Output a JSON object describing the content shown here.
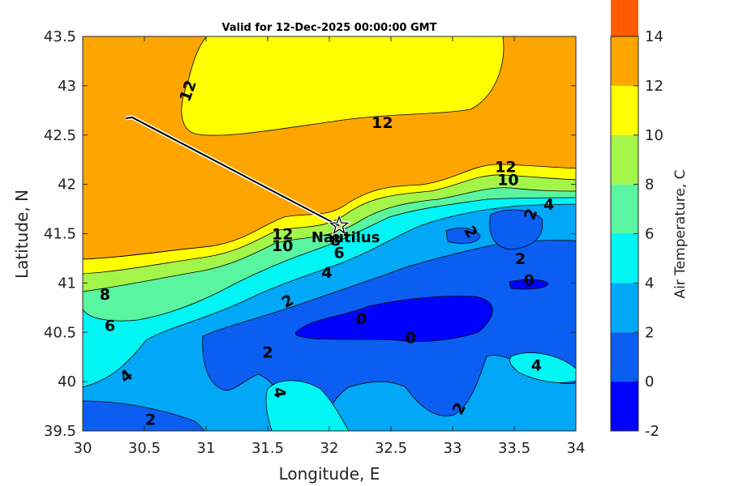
{
  "title": "Valid for 12-Dec-2025 00:00:00 GMT",
  "x_axis": {
    "label": "Longitude, E",
    "ticks": [
      "30",
      "30.5",
      "31",
      "31.5",
      "32",
      "32.5",
      "33",
      "33.5",
      "34"
    ]
  },
  "y_axis": {
    "label": "Latitude, N",
    "ticks": [
      "39.5",
      "40",
      "40.5",
      "41",
      "41.5",
      "42",
      "42.5",
      "43",
      "43.5"
    ]
  },
  "colorbar": {
    "label": "Air Temperature, C",
    "ticks": [
      "-2",
      "0",
      "2",
      "4",
      "6",
      "8",
      "10",
      "12",
      "14"
    ],
    "colors": [
      "#0000ff",
      "#0a5ef2",
      "#00a8f7",
      "#00f5f5",
      "#59f5a0",
      "#a4f54a",
      "#ffff00",
      "#ffa500",
      "#ff5a00"
    ]
  },
  "ship": {
    "name": "Nautilus",
    "position": {
      "lon": 32.08,
      "lat": 41.58
    },
    "track": [
      {
        "lon": 30.35,
        "lat": 42.67
      },
      {
        "lon": 30.4,
        "lat": 42.68
      },
      {
        "lon": 32.08,
        "lat": 41.58
      }
    ]
  },
  "contour_labels": [
    {
      "text": "12",
      "lon": 30.85,
      "lat": 42.95,
      "rot": -70
    },
    {
      "text": "12",
      "lon": 32.43,
      "lat": 42.63,
      "rot": 0
    },
    {
      "text": "12",
      "lon": 33.43,
      "lat": 42.18,
      "rot": 0
    },
    {
      "text": "10",
      "lon": 33.45,
      "lat": 42.05,
      "rot": 0
    },
    {
      "text": "12",
      "lon": 31.62,
      "lat": 41.5,
      "rot": 0
    },
    {
      "text": "10",
      "lon": 31.62,
      "lat": 41.38,
      "rot": 0
    },
    {
      "text": "8",
      "lon": 32.05,
      "lat": 41.44,
      "rot": 0
    },
    {
      "text": "6",
      "lon": 32.08,
      "lat": 41.31,
      "rot": 0
    },
    {
      "text": "4",
      "lon": 31.98,
      "lat": 41.11,
      "rot": 0
    },
    {
      "text": "4",
      "lon": 33.78,
      "lat": 41.8,
      "rot": 0
    },
    {
      "text": "2",
      "lon": 33.63,
      "lat": 41.7,
      "rot": -70
    },
    {
      "text": "2",
      "lon": 33.15,
      "lat": 41.52,
      "rot": 60
    },
    {
      "text": "2",
      "lon": 33.55,
      "lat": 41.25,
      "rot": 0
    },
    {
      "text": "0",
      "lon": 33.62,
      "lat": 41.03,
      "rot": 0
    },
    {
      "text": "8",
      "lon": 30.18,
      "lat": 40.89,
      "rot": 0
    },
    {
      "text": "6",
      "lon": 30.22,
      "lat": 40.57,
      "rot": 0
    },
    {
      "text": "2",
      "lon": 31.66,
      "lat": 40.82,
      "rot": -30
    },
    {
      "text": "0",
      "lon": 32.26,
      "lat": 40.64,
      "rot": 0
    },
    {
      "text": "0",
      "lon": 32.66,
      "lat": 40.45,
      "rot": 0
    },
    {
      "text": "2",
      "lon": 31.5,
      "lat": 40.3,
      "rot": 0
    },
    {
      "text": "4",
      "lon": 30.35,
      "lat": 40.06,
      "rot": -40
    },
    {
      "text": "4",
      "lon": 31.6,
      "lat": 39.89,
      "rot": 80
    },
    {
      "text": "4",
      "lon": 33.68,
      "lat": 40.17,
      "rot": 0
    },
    {
      "text": "2",
      "lon": 33.05,
      "lat": 39.73,
      "rot": -60
    },
    {
      "text": "2",
      "lon": 30.55,
      "lat": 39.62,
      "rot": 0
    }
  ]
}
